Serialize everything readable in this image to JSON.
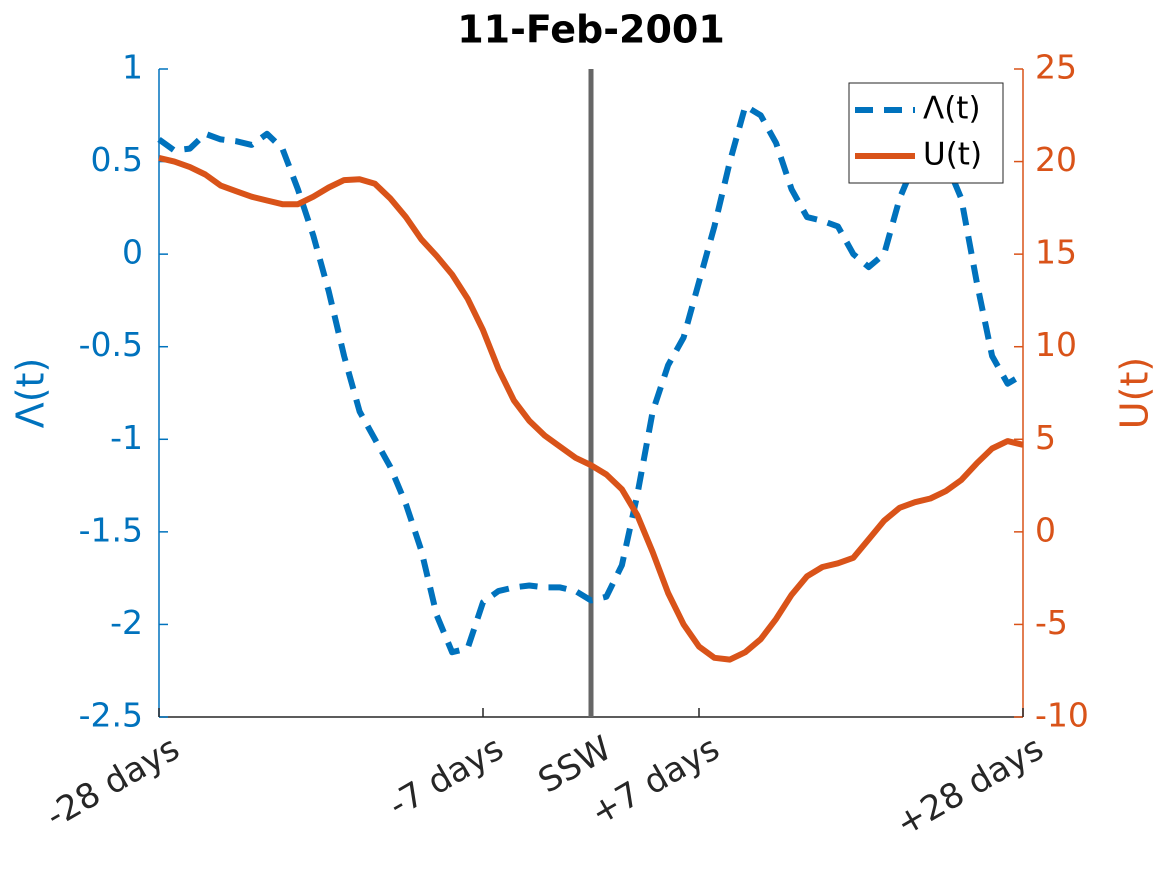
{
  "chart_data": {
    "type": "line",
    "title": "11-Feb-2001",
    "ylabel": "Λ(t)",
    "y2label": "U(t)",
    "x": [
      -28,
      -27,
      -26,
      -25,
      -24,
      -23,
      -22,
      -21,
      -20,
      -19,
      -18,
      -17,
      -16,
      -15,
      -14,
      -13,
      -12,
      -11,
      -10,
      -9,
      -8,
      -7,
      -6,
      -5,
      -4,
      -3,
      -2,
      -1,
      0,
      1,
      2,
      3,
      4,
      5,
      6,
      7,
      8,
      9,
      10,
      11,
      12,
      13,
      14,
      15,
      16,
      17,
      18,
      19,
      20,
      21,
      22,
      23,
      24,
      25,
      26,
      27,
      28
    ],
    "series": [
      {
        "name": "Λ(t)",
        "color": "#0072BD",
        "dash": true,
        "axis": "y",
        "values": [
          0.62,
          0.56,
          0.57,
          0.65,
          0.62,
          0.61,
          0.59,
          0.65,
          0.57,
          0.35,
          0.1,
          -0.2,
          -0.55,
          -0.85,
          -1.0,
          -1.15,
          -1.35,
          -1.6,
          -1.95,
          -2.15,
          -2.13,
          -1.88,
          -1.82,
          -1.8,
          -1.79,
          -1.8,
          -1.8,
          -1.82,
          -1.87,
          -1.85,
          -1.68,
          -1.3,
          -0.85,
          -0.6,
          -0.45,
          -0.15,
          0.15,
          0.5,
          0.8,
          0.75,
          0.6,
          0.35,
          0.2,
          0.18,
          0.15,
          0.0,
          -0.07,
          0.0,
          0.3,
          0.5,
          0.5,
          0.5,
          0.3,
          -0.15,
          -0.55,
          -0.7,
          -0.65
        ]
      },
      {
        "name": "U(t)",
        "color": "#D95319",
        "dash": false,
        "axis": "y2",
        "values": [
          20.2,
          20.0,
          19.7,
          19.3,
          18.7,
          18.4,
          18.1,
          17.9,
          17.7,
          17.7,
          18.1,
          18.6,
          19.0,
          19.05,
          18.8,
          18.0,
          17.0,
          15.8,
          14.9,
          13.9,
          12.6,
          10.9,
          8.8,
          7.1,
          6.0,
          5.2,
          4.6,
          4.0,
          3.6,
          3.1,
          2.3,
          0.9,
          -1.1,
          -3.3,
          -5.0,
          -6.2,
          -6.8,
          -6.9,
          -6.5,
          -5.8,
          -4.7,
          -3.4,
          -2.4,
          -1.9,
          -1.7,
          -1.4,
          -0.4,
          0.6,
          1.3,
          1.6,
          1.8,
          2.2,
          2.8,
          3.7,
          4.5,
          4.9,
          4.7
        ]
      }
    ],
    "xlim": [
      -28,
      28
    ],
    "xticks": [
      {
        "value": -28,
        "label": "-28 days"
      },
      {
        "value": -7,
        "label": "-7 days"
      },
      {
        "value": 0,
        "label": "SSW"
      },
      {
        "value": 7,
        "label": "+7 days"
      },
      {
        "value": 28,
        "label": "+28 days"
      }
    ],
    "ylim": [
      -2.5,
      1
    ],
    "yticks": [
      -2.5,
      -2,
      -1.5,
      -1,
      -0.5,
      0,
      0.5,
      1
    ],
    "y2lim": [
      -10,
      25
    ],
    "y2ticks": [
      -10,
      -5,
      0,
      5,
      10,
      15,
      20,
      25
    ],
    "vline_x": 0,
    "vline_color": "#666666",
    "legend": "northeast",
    "grid": false
  }
}
